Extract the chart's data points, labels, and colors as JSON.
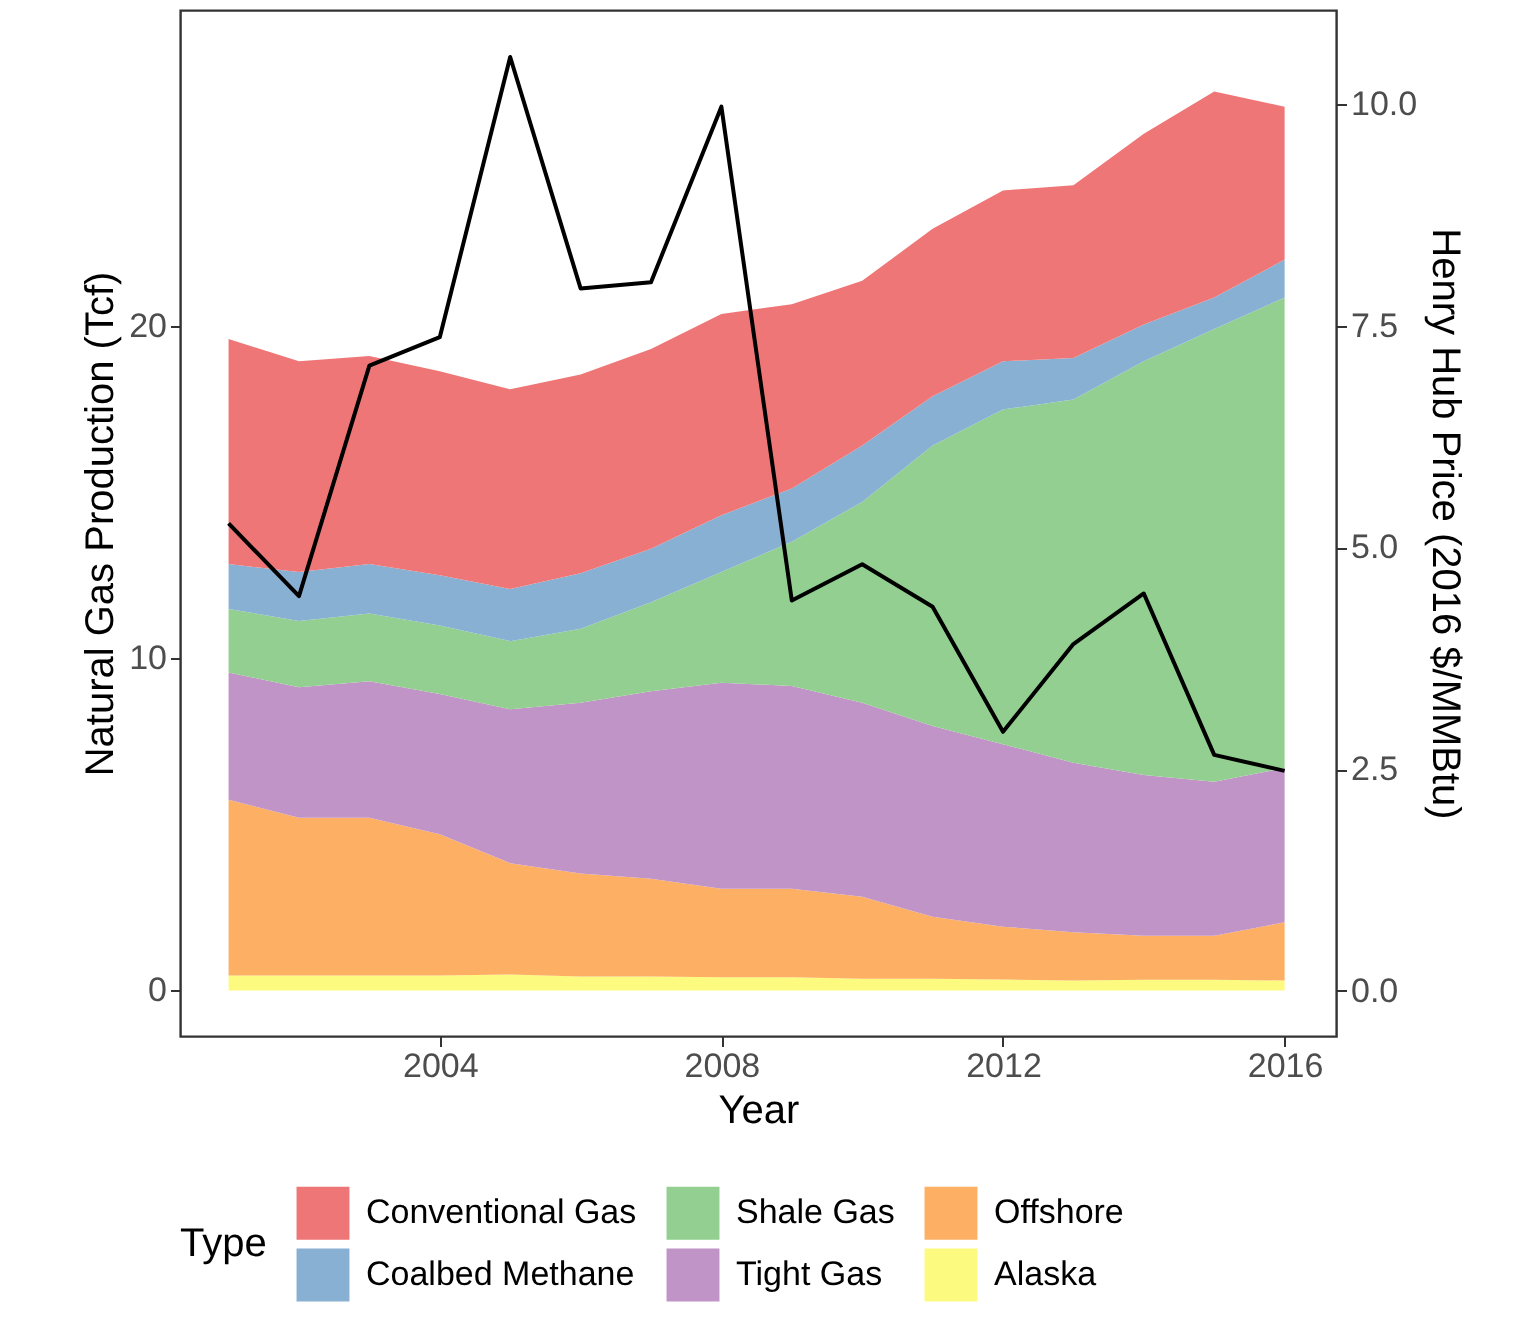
{
  "chart_data": {
    "type": "area",
    "stacked": true,
    "xlabel": "Year",
    "ylabel": "Natural Gas Production (Tcf)",
    "y2label": "Henry Hub Price (2016 $/MMBtu)",
    "legend_title": "Type",
    "legend": "bottom",
    "grid": false,
    "x": [
      2001,
      2002,
      2003,
      2004,
      2005,
      2006,
      2007,
      2008,
      2009,
      2010,
      2011,
      2012,
      2013,
      2014,
      2015,
      2016
    ],
    "xlim": [
      2000.31,
      2016.73
    ],
    "xticks": [
      2004,
      2008,
      2012,
      2016
    ],
    "ylim": [
      -1.37,
      29.5
    ],
    "yticks": [
      0,
      10,
      20
    ],
    "y2lim": [
      -0.51,
      11.06
    ],
    "y2ticks": [
      {
        "value": 0,
        "label": "0.0"
      },
      {
        "value": 2.5,
        "label": "2.5"
      },
      {
        "value": 5,
        "label": "5.0"
      },
      {
        "value": 7.5,
        "label": "7.5"
      },
      {
        "value": 10,
        "label": "10.0"
      }
    ],
    "series": [
      {
        "name": "Alaska",
        "color": "#fdfa80",
        "values": [
          0.45,
          0.45,
          0.45,
          0.45,
          0.48,
          0.42,
          0.42,
          0.4,
          0.4,
          0.35,
          0.35,
          0.33,
          0.3,
          0.32,
          0.32,
          0.3
        ]
      },
      {
        "name": "Offshore",
        "color": "#fdb064",
        "values": [
          5.29,
          4.75,
          4.75,
          4.25,
          3.35,
          3.1,
          2.94,
          2.66,
          2.66,
          2.47,
          1.87,
          1.59,
          1.45,
          1.33,
          1.33,
          1.75
        ]
      },
      {
        "name": "Tight Gas",
        "color": "#c194c7",
        "values": [
          3.83,
          3.92,
          4.1,
          4.22,
          4.63,
          5.14,
          5.64,
          6.2,
          6.1,
          5.84,
          5.74,
          5.49,
          5.1,
          4.83,
          4.63,
          4.64
        ]
      },
      {
        "name": "Shale Gas",
        "color": "#93cf91",
        "values": [
          1.91,
          2.0,
          2.04,
          2.06,
          2.05,
          2.22,
          2.68,
          3.33,
          4.34,
          6.04,
          8.44,
          10.07,
          10.93,
          12.45,
          13.62,
          14.16
        ]
      },
      {
        "name": "Coalbed Methane",
        "color": "#88b0d3",
        "values": [
          1.35,
          1.47,
          1.49,
          1.51,
          1.57,
          1.67,
          1.61,
          1.71,
          1.6,
          1.7,
          1.48,
          1.45,
          1.25,
          1.11,
          0.95,
          1.14
        ]
      },
      {
        "name": "Conventional Gas",
        "color": "#ef7677",
        "values": [
          6.77,
          6.34,
          6.26,
          6.14,
          6.01,
          5.98,
          6.01,
          6.05,
          5.55,
          4.95,
          5.04,
          5.14,
          5.2,
          5.74,
          6.2,
          4.6
        ]
      },
      {
        "type": "line",
        "axis": "y2",
        "color": "#000000",
        "values": [
          5.27,
          4.45,
          7.05,
          7.37,
          10.53,
          7.92,
          7.99,
          9.97,
          4.4,
          4.81,
          4.33,
          2.92,
          3.91,
          4.48,
          2.66,
          2.48
        ]
      }
    ]
  }
}
